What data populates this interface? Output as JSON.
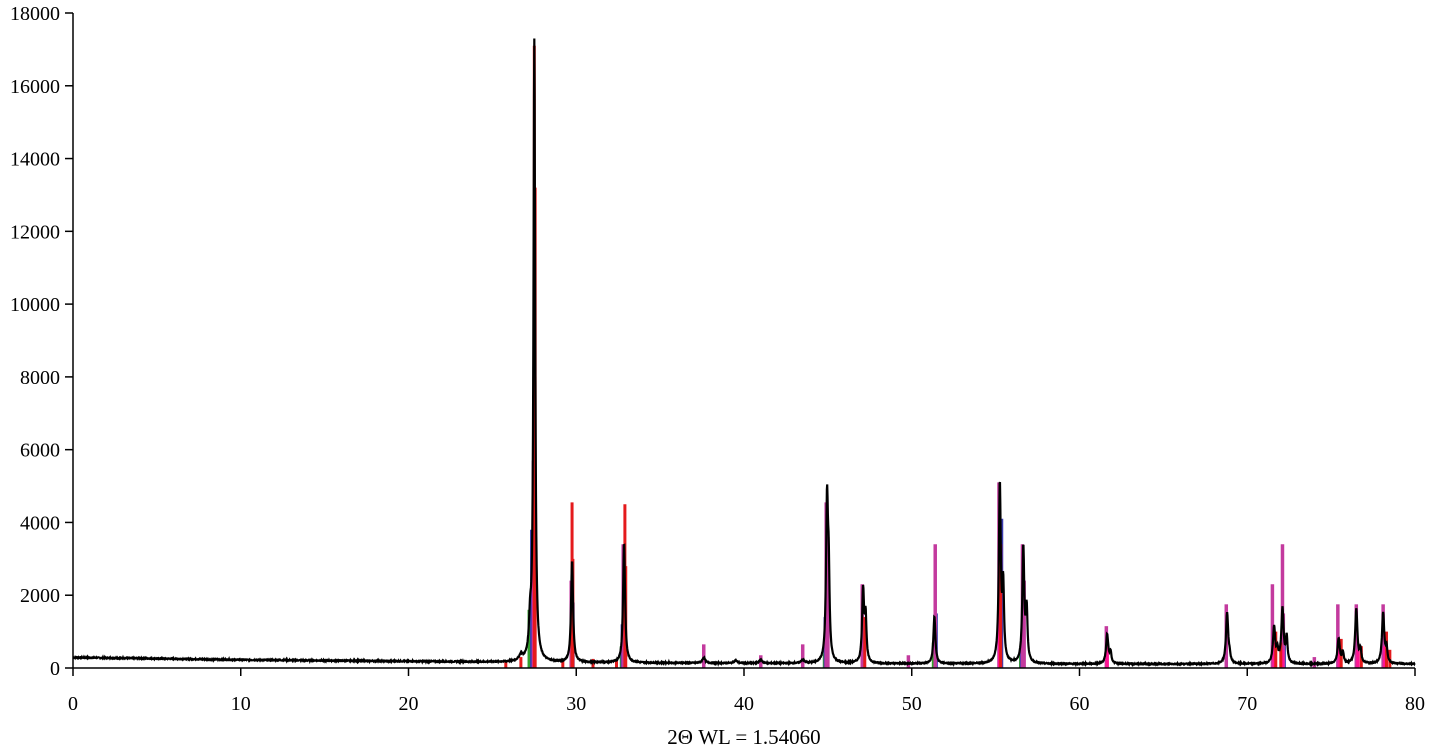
{
  "chart_data": {
    "type": "line",
    "title": "",
    "xlabel": "2Θ WL = 1.54060",
    "ylabel": "",
    "xlim": [
      0,
      80
    ],
    "ylim": [
      0,
      18000
    ],
    "xticks": [
      0,
      10,
      20,
      30,
      40,
      50,
      60,
      70,
      80
    ],
    "yticks": [
      0,
      2000,
      4000,
      6000,
      8000,
      10000,
      12000,
      14000,
      16000,
      18000
    ],
    "grid": false,
    "colors": {
      "measured": "#000000",
      "phase_red": "#e41a1c",
      "phase_magenta": "#c33a9e",
      "phase_pink": "#ff1493",
      "phase_blue": "#3b3bb0",
      "phase_green": "#33a02c"
    },
    "measured_pattern": {
      "baseline": [
        [
          0,
          290
        ],
        [
          5,
          260
        ],
        [
          10,
          225
        ],
        [
          15,
          205
        ],
        [
          20,
          185
        ],
        [
          25,
          165
        ],
        [
          30,
          150
        ],
        [
          40,
          130
        ],
        [
          50,
          120
        ],
        [
          60,
          110
        ],
        [
          70,
          110
        ],
        [
          80,
          110
        ]
      ],
      "peaks": [
        [
          26.7,
          150,
          0.12
        ],
        [
          27.25,
          900,
          0.08
        ],
        [
          27.5,
          17100,
          0.06
        ],
        [
          29.75,
          2800,
          0.07
        ],
        [
          32.85,
          3300,
          0.07
        ],
        [
          37.6,
          150,
          0.1
        ],
        [
          39.5,
          80,
          0.1
        ],
        [
          41.0,
          100,
          0.1
        ],
        [
          43.5,
          100,
          0.1
        ],
        [
          44.95,
          4400,
          0.07
        ],
        [
          45.05,
          2000,
          0.06
        ],
        [
          47.1,
          2000,
          0.07
        ],
        [
          47.25,
          1200,
          0.06
        ],
        [
          51.35,
          1300,
          0.07
        ],
        [
          55.25,
          4900,
          0.07
        ],
        [
          55.45,
          2000,
          0.06
        ],
        [
          56.65,
          3200,
          0.07
        ],
        [
          56.85,
          1400,
          0.06
        ],
        [
          61.65,
          800,
          0.08
        ],
        [
          61.85,
          300,
          0.06
        ],
        [
          68.8,
          1400,
          0.08
        ],
        [
          68.95,
          150,
          0.06
        ],
        [
          71.6,
          1000,
          0.08
        ],
        [
          71.8,
          300,
          0.06
        ],
        [
          72.1,
          1500,
          0.08
        ],
        [
          72.35,
          700,
          0.06
        ],
        [
          75.45,
          700,
          0.08
        ],
        [
          75.7,
          300,
          0.06
        ],
        [
          76.5,
          1500,
          0.08
        ],
        [
          76.75,
          350,
          0.06
        ],
        [
          78.1,
          1400,
          0.08
        ],
        [
          78.3,
          400,
          0.06
        ]
      ]
    },
    "reference_sticks": [
      {
        "color": "red",
        "peaks": [
          [
            25.8,
            220
          ],
          [
            26.7,
            300
          ],
          [
            29.2,
            250
          ],
          [
            31.0,
            250
          ],
          [
            32.4,
            200
          ],
          [
            27.5,
            17100
          ],
          [
            27.55,
            13200
          ],
          [
            29.75,
            4550
          ],
          [
            29.8,
            3000
          ],
          [
            32.9,
            4500
          ],
          [
            32.95,
            2800
          ],
          [
            47.2,
            1400
          ],
          [
            55.3,
            3400
          ],
          [
            71.7,
            1000
          ],
          [
            72.0,
            700
          ],
          [
            75.6,
            800
          ],
          [
            76.8,
            600
          ],
          [
            78.3,
            1000
          ],
          [
            78.5,
            500
          ]
        ]
      },
      {
        "color": "magenta",
        "peaks": [
          [
            27.45,
            5700
          ],
          [
            29.7,
            2400
          ],
          [
            32.8,
            3400
          ],
          [
            37.6,
            650
          ],
          [
            41.0,
            350
          ],
          [
            43.5,
            650
          ],
          [
            44.9,
            4550
          ],
          [
            45.0,
            3600
          ],
          [
            47.05,
            2300
          ],
          [
            49.8,
            350
          ],
          [
            51.4,
            3400
          ],
          [
            55.2,
            5100
          ],
          [
            56.6,
            3400
          ],
          [
            56.7,
            2400
          ],
          [
            61.6,
            1150
          ],
          [
            68.75,
            1750
          ],
          [
            71.5,
            2300
          ],
          [
            72.1,
            3400
          ],
          [
            72.15,
            1500
          ],
          [
            74.0,
            300
          ],
          [
            75.4,
            1750
          ],
          [
            76.5,
            1750
          ],
          [
            78.1,
            1750
          ]
        ]
      },
      {
        "color": "pink",
        "peaks": [
          [
            27.5,
            7300
          ],
          [
            55.25,
            3300
          ],
          [
            61.65,
            600
          ],
          [
            71.6,
            700
          ],
          [
            72.1,
            500
          ],
          [
            75.5,
            600
          ],
          [
            76.6,
            500
          ],
          [
            78.2,
            600
          ]
        ]
      },
      {
        "color": "blue",
        "peaks": [
          [
            27.35,
            3800
          ],
          [
            29.8,
            1800
          ],
          [
            32.75,
            1200
          ],
          [
            44.85,
            1400
          ],
          [
            51.45,
            1500
          ],
          [
            55.35,
            4100
          ],
          [
            56.55,
            700
          ],
          [
            72.2,
            800
          ]
        ]
      },
      {
        "color": "green",
        "peaks": [
          [
            27.2,
            1600
          ],
          [
            29.7,
            800
          ],
          [
            32.7,
            600
          ],
          [
            44.8,
            500
          ],
          [
            51.3,
            700
          ],
          [
            56.5,
            400
          ]
        ]
      }
    ]
  }
}
